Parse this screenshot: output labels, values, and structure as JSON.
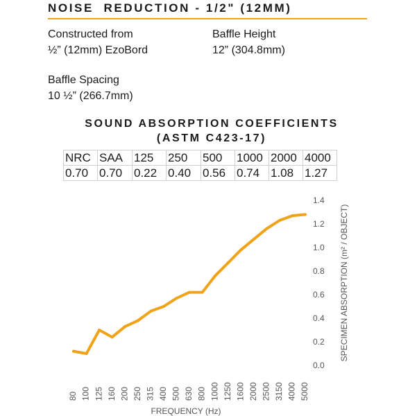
{
  "header": {
    "title": "NOISE  REDUCTION - 1/2\" (12MM)"
  },
  "specs": {
    "construction_label": "Constructed from",
    "construction_value": "½” (12mm) EzoBord",
    "height_label": "Baffle Height",
    "height_value": "12” (304.8mm)",
    "spacing_label": "Baffle Spacing",
    "spacing_value": "10 ½” (266.7mm)"
  },
  "coefficients": {
    "title_line1": "SOUND ABSORPTION COEFFICIENTS",
    "title_line2": "(ASTM C423-17)",
    "headers": [
      "NRC",
      "SAA",
      "125",
      "250",
      "500",
      "1000",
      "2000",
      "4000"
    ],
    "values": [
      "0.70",
      "0.70",
      "0.22",
      "0.40",
      "0.56",
      "0.74",
      "1.08",
      "1.27"
    ]
  },
  "colors": {
    "accent": "#f0a318",
    "rule": "#f0a318"
  },
  "chart_data": {
    "type": "line",
    "xlabel": "FREQUENCY (Hz)",
    "ylabel": "SPECIMEN ABSORPTION (m² / OBJECT)",
    "ylim": [
      0,
      1.4
    ],
    "yticks": [
      "0.0",
      "0.2",
      "0.4",
      "0.6",
      "0.8",
      "1.0",
      "1.2",
      "1.4"
    ],
    "categories": [
      "80",
      "100",
      "125",
      "160",
      "200",
      "250",
      "315",
      "400",
      "500",
      "630",
      "800",
      "1000",
      "1250",
      "1600",
      "2000",
      "2500",
      "3150",
      "4000",
      "5000"
    ],
    "series": [
      {
        "values": [
          0.12,
          0.1,
          0.3,
          0.24,
          0.33,
          0.38,
          0.46,
          0.5,
          0.57,
          0.62,
          0.62,
          0.76,
          0.87,
          0.98,
          1.07,
          1.16,
          1.23,
          1.27,
          1.28
        ]
      }
    ],
    "grid": false,
    "line_color": "#f0a318"
  }
}
